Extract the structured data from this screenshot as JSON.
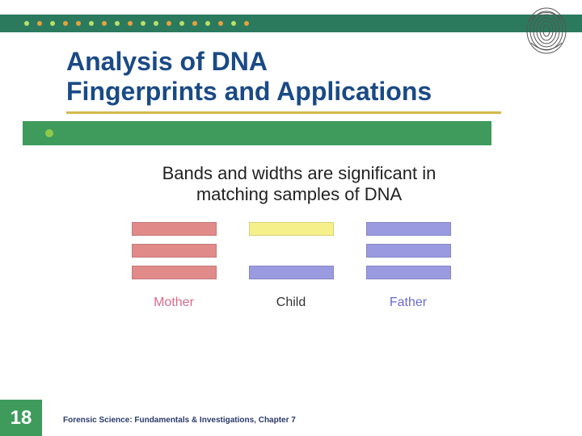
{
  "header": {
    "band_color": "#2b7a5e",
    "dot_colors": [
      "#b6e06a",
      "#e6a23c",
      "#b6e06a",
      "#e6a23c",
      "#e6a23c",
      "#b6e06a",
      "#e6a23c",
      "#b6e06a",
      "#e6a23c",
      "#b6e06a",
      "#b6e06a",
      "#e6a23c",
      "#b6e06a",
      "#e6a23c",
      "#b6e06a",
      "#e6a23c",
      "#b6e06a",
      "#e6a23c"
    ]
  },
  "title": {
    "line1": "Analysis of DNA",
    "line2": "Fingerprints and Applications",
    "color": "#1a4a86",
    "fontsize": 32,
    "underline_color": "#d4b84a"
  },
  "accent_block_color": "#3e9b5c",
  "bullet_color": "#8fc94a",
  "subtitle": "Bands and widths are significant in matching samples of DNA",
  "diagram": {
    "band_height": 17,
    "band_width": 105,
    "columns": [
      {
        "label": "Mother",
        "label_color": "#d96a8c",
        "bands": [
          {
            "color": "#e08a8a"
          },
          {
            "color": "#e08a8a"
          },
          {
            "color": "#e08a8a"
          }
        ]
      },
      {
        "label": "Child",
        "label_color": "#333333",
        "bands": [
          {
            "color": "#f5f08a"
          },
          {
            "spacer": true
          },
          {
            "color": "#9a9ae0"
          }
        ]
      },
      {
        "label": "Father",
        "label_color": "#6a6ad4",
        "bands": [
          {
            "color": "#9a9ae0"
          },
          {
            "color": "#9a9ae0"
          },
          {
            "color": "#9a9ae0"
          }
        ]
      }
    ]
  },
  "footer": {
    "page_number": "18",
    "page_bg": "#3e9b5c",
    "text": "Forensic Science: Fundamentals & Investigations, Chapter 7",
    "text_color": "#2a3a6a"
  }
}
